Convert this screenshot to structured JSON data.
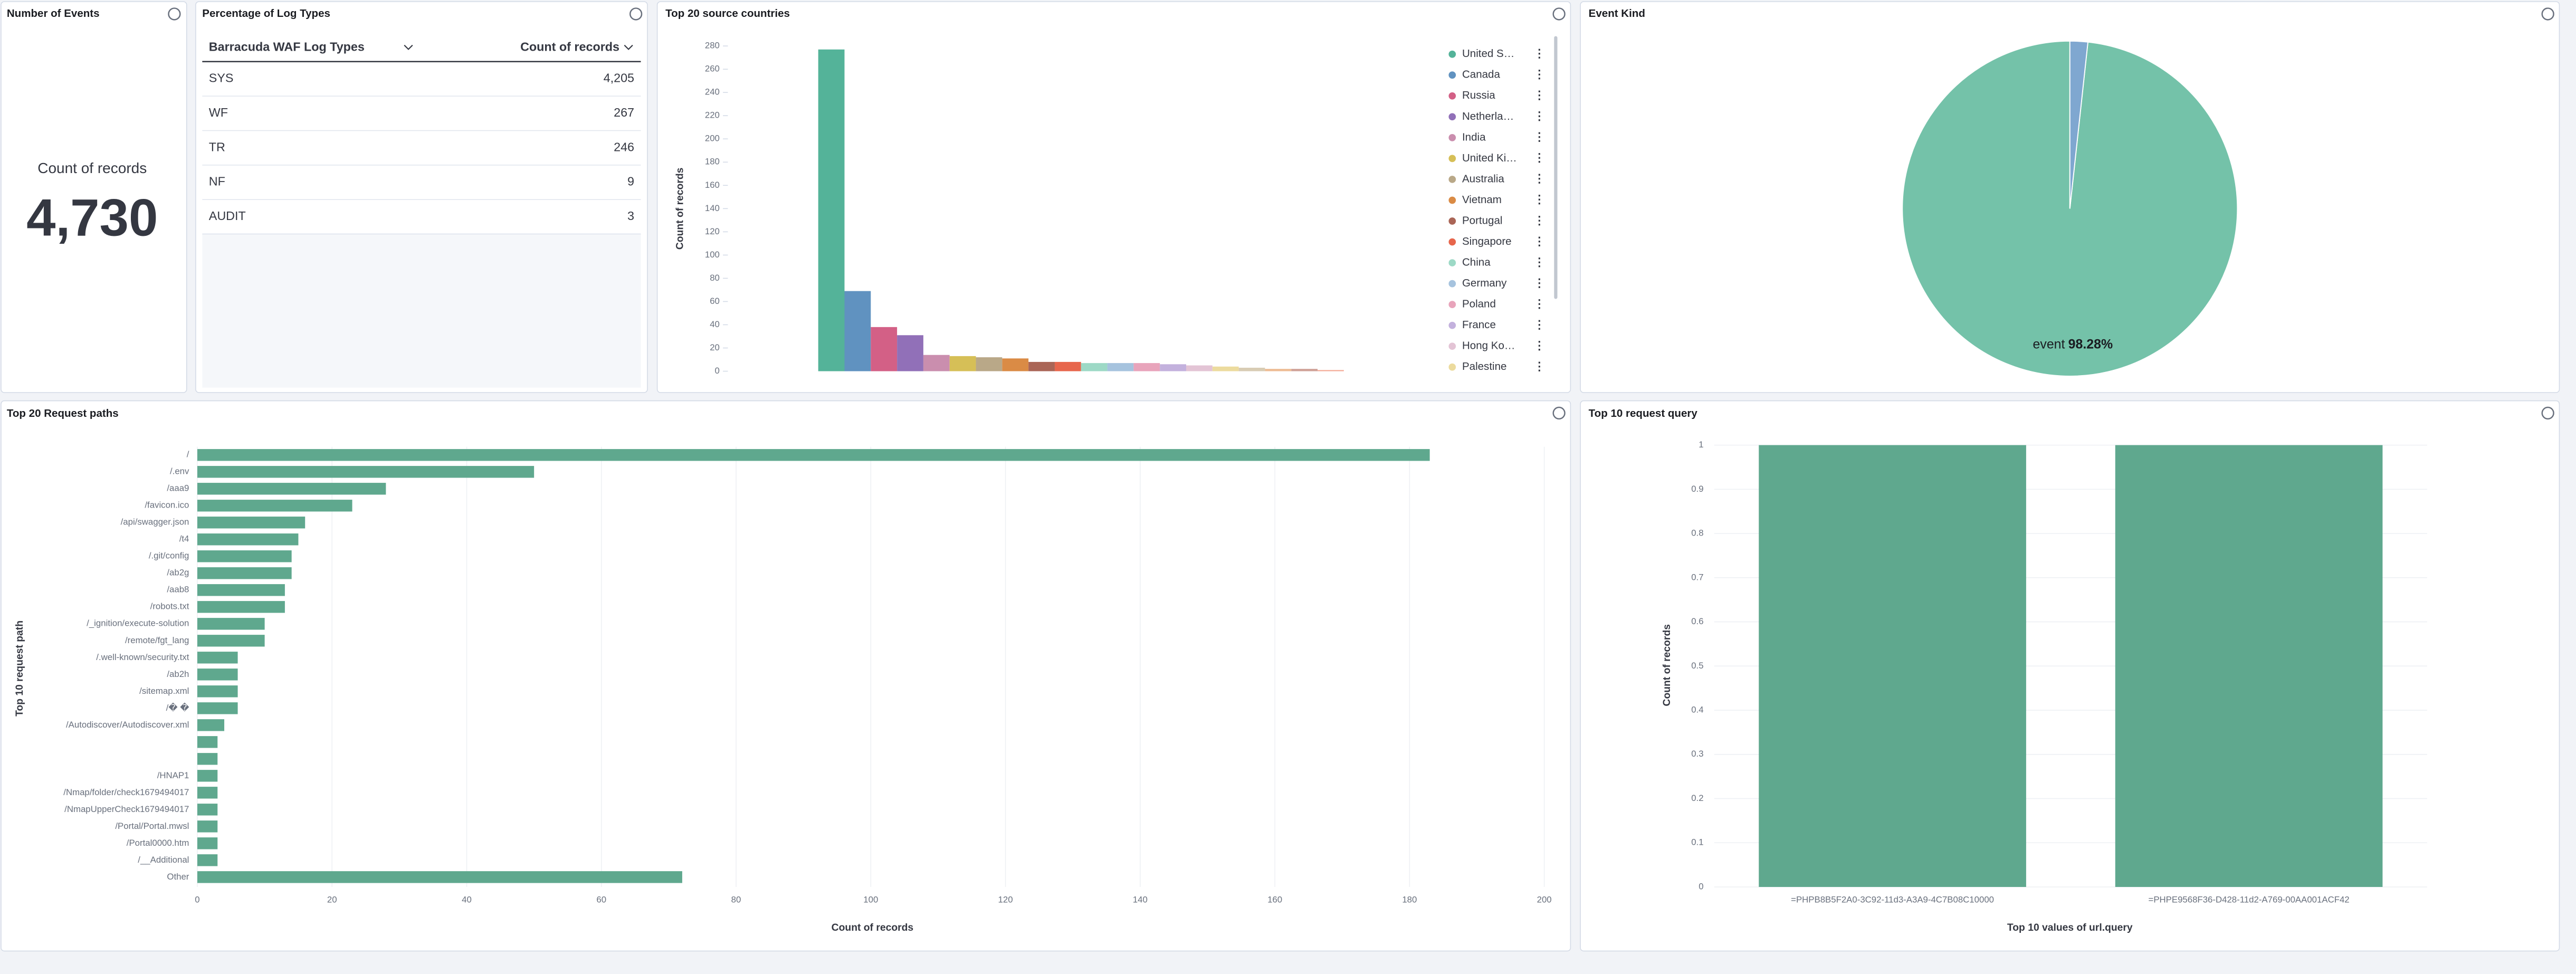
{
  "metric": {
    "title": "Number of Events",
    "label": "Count of records",
    "value": "4,730"
  },
  "table": {
    "title": "Percentage of Log Types",
    "columns": [
      "Barracuda WAF Log Types",
      "Count of records"
    ],
    "rows": [
      [
        "SYS",
        "4,205"
      ],
      [
        "WF",
        "267"
      ],
      [
        "TR",
        "246"
      ],
      [
        "NF",
        "9"
      ],
      [
        "AUDIT",
        "3"
      ]
    ]
  },
  "chart_data": [
    {
      "type": "bar",
      "title": "Top 20 source countries",
      "y_label": "Count of records",
      "categories": [
        "United S…",
        "Canada",
        "Russia",
        "Netherla…",
        "India",
        "United Ki…",
        "Australia",
        "Vietnam",
        "Portugal",
        "Singapore",
        "China",
        "Germany",
        "Poland",
        "France",
        "Hong Ko…",
        "Palestine",
        null,
        null,
        null,
        null
      ],
      "values": [
        277,
        69,
        38,
        31,
        14,
        13,
        12,
        11,
        8,
        8,
        7,
        7,
        7,
        6,
        5,
        4,
        3,
        2,
        2,
        1
      ],
      "colors": [
        "#54b399",
        "#6092c0",
        "#d36086",
        "#9170b8",
        "#ca8eae",
        "#d6bf57",
        "#b9a888",
        "#da8b45",
        "#aa6556",
        "#e7664c",
        "#9dd9c6",
        "#a6c3de",
        "#e8a4bb",
        "#c3b1dd",
        "#e3c4d5",
        "#ecdb9e",
        "#d8ccb4",
        "#edbc94",
        "#cfa197",
        "#f3a996"
      ],
      "ylim": [
        0,
        280
      ],
      "yticks": [
        0,
        20,
        40,
        60,
        80,
        100,
        120,
        140,
        160,
        180,
        200,
        220,
        240,
        260,
        280
      ],
      "grid": false
    },
    {
      "type": "pie",
      "title": "Event Kind",
      "categories": [
        "event",
        null
      ],
      "values": [
        98.28,
        1.72
      ],
      "value_labels": [
        "98.28%",
        null
      ],
      "colors": [
        "#74c2a9",
        "#7fa7d0"
      ]
    },
    {
      "type": "hbar",
      "title": "Top 20 Request paths",
      "x_label": "Count of records",
      "y_label": "Top 10 request path",
      "categories": [
        "/",
        "/.env",
        "/aaa9",
        "/favicon.ico",
        "/api/swagger.json",
        "/t4",
        "/.git/config",
        "/ab2g",
        "/aab8",
        "/robots.txt",
        "/_ignition/execute-solution",
        "/remote/fgt_lang",
        "/.well-known/security.txt",
        "/ab2h",
        "/sitemap.xml",
        "/� �",
        "/Autodiscover/Autodiscover.xml",
        null,
        null,
        "/HNAP1",
        "/Nmap/folder/check1679494017",
        "/NmapUpperCheck1679494017",
        "/Portal/Portal.mwsl",
        "/Portal0000.htm",
        "/__Additional",
        "Other"
      ],
      "values": [
        183,
        50,
        28,
        23,
        16,
        15,
        14,
        14,
        13,
        13,
        10,
        10,
        6,
        6,
        6,
        6,
        4,
        3,
        3,
        3,
        3,
        3,
        3,
        3,
        3,
        72
      ],
      "color": "#5fa88e",
      "xlim": [
        0,
        200
      ],
      "xticks": [
        0,
        20,
        40,
        60,
        80,
        100,
        120,
        140,
        160,
        180,
        200
      ],
      "grid": true
    },
    {
      "type": "bar",
      "title": "Top 10 request query",
      "x_label": "Top 10 values of url.query",
      "y_label": "Count of records",
      "categories": [
        "=PHPB8B5F2A0-3C92-11d3-A3A9-4C7B08C10000",
        "=PHPE9568F36-D428-11d2-A769-00AA001ACF42"
      ],
      "values": [
        1,
        1
      ],
      "color": "#5fa88e",
      "ylim": [
        0,
        1
      ],
      "yticks": [
        0,
        0.1,
        0.2,
        0.3,
        0.4,
        0.5,
        0.6,
        0.7,
        0.8,
        0.9,
        1
      ],
      "grid": true
    }
  ]
}
